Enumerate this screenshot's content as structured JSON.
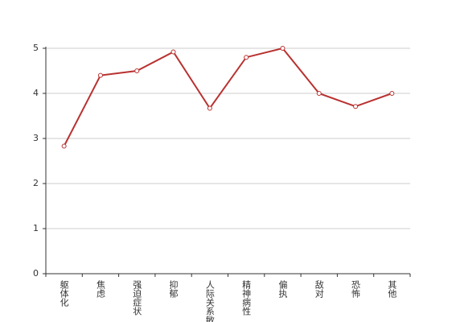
{
  "chart_data": {
    "type": "line",
    "categories": [
      "躯体化",
      "焦虑",
      "强迫症状",
      "抑郁",
      "人际关系敏感",
      "精神病性",
      "偏执",
      "敌对",
      "恐怖",
      "其他"
    ],
    "values": [
      2.83,
      4.4,
      4.5,
      4.92,
      3.67,
      4.8,
      5.0,
      4.0,
      3.71,
      4.0
    ],
    "color": "#b83230",
    "ylim": [
      0,
      5
    ],
    "yticks": [
      0,
      1,
      2,
      3,
      4,
      5
    ],
    "grid": true
  }
}
